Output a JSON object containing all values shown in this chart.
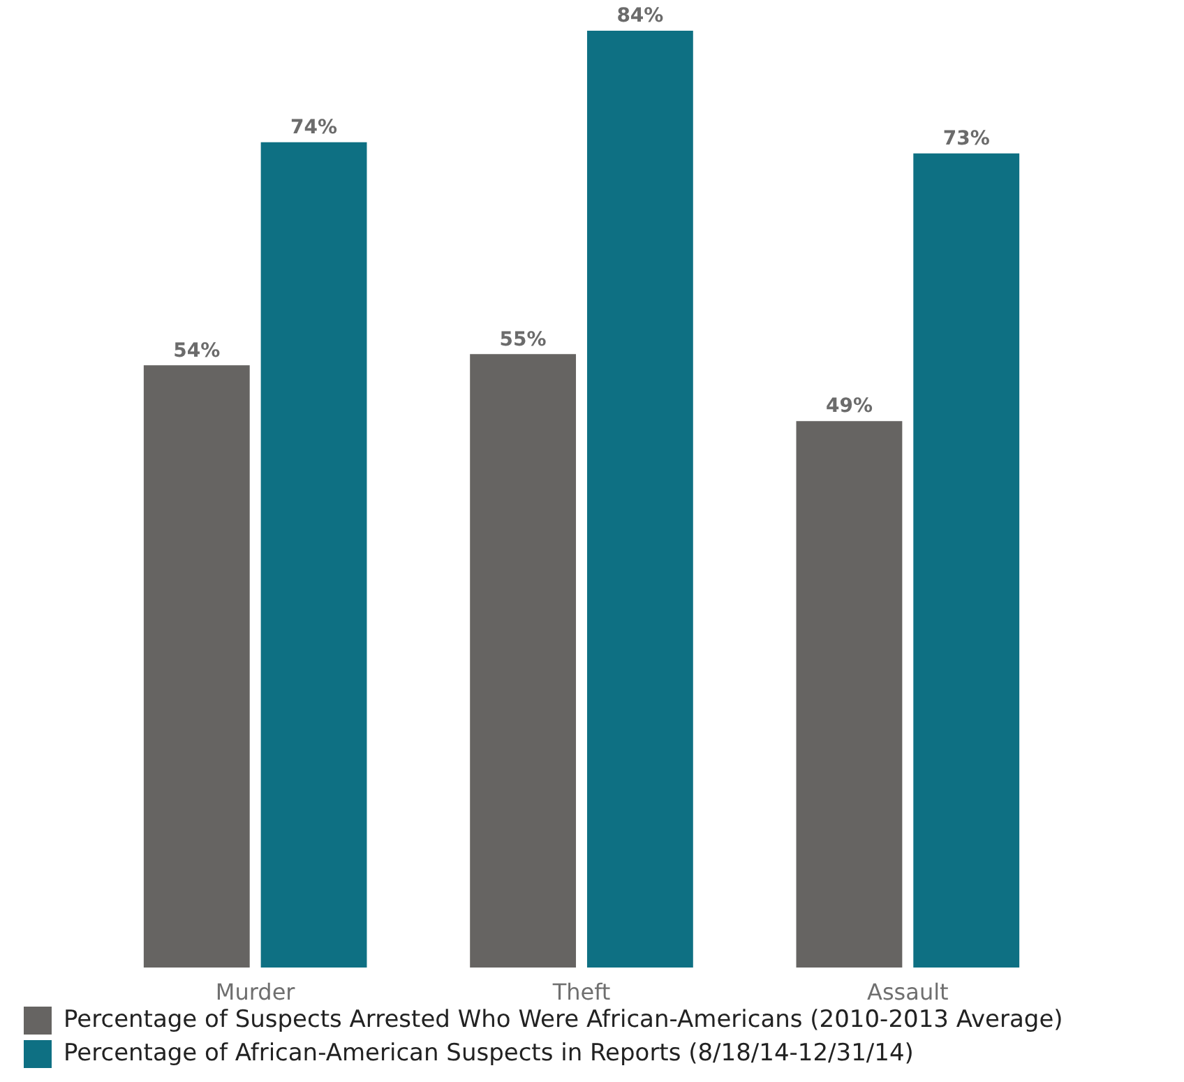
{
  "chart_data": {
    "type": "bar",
    "categories": [
      "Murder",
      "Theft",
      "Assault"
    ],
    "series": [
      {
        "name": "Percentage of Suspects Arrested Who Were African-Americans (2010-2013 Average)",
        "color": "#666462",
        "values": [
          54,
          55,
          49
        ],
        "value_labels": [
          "54%",
          "55%",
          "49%"
        ]
      },
      {
        "name": "Percentage of African-American Suspects in Reports (8/18/14-12/31/14)",
        "color": "#0e7083",
        "values": [
          74,
          84,
          73
        ],
        "value_labels": [
          "74%",
          "84%",
          "73%"
        ]
      }
    ],
    "legend": "bottom left",
    "grid": false,
    "tick_labels": "x"
  }
}
